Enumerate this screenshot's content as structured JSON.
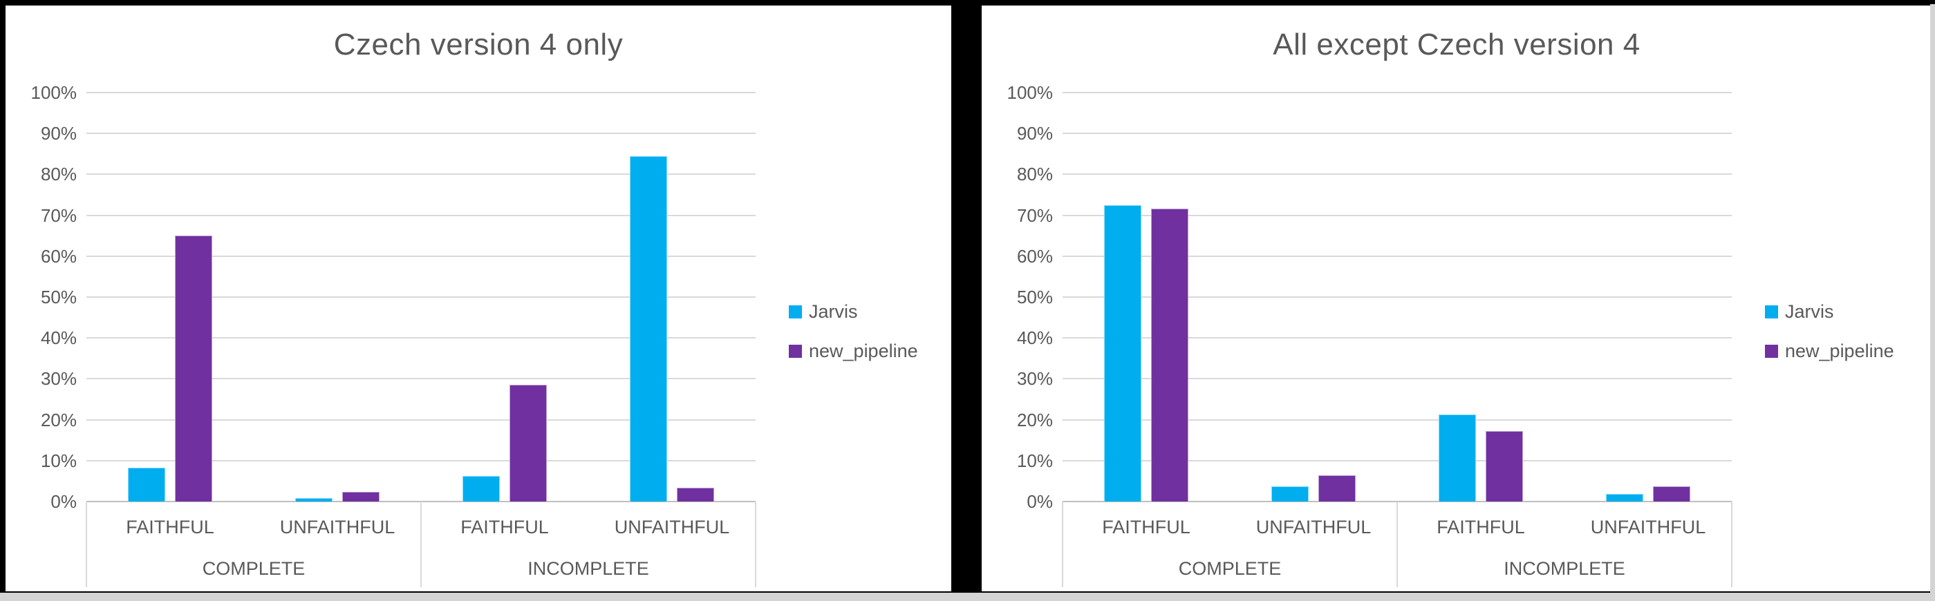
{
  "page": {
    "background_color": "#000000",
    "panel_color": "#ffffff",
    "bottom_strip_color": "#d4d4d4",
    "text_color": "#595959",
    "gridline_color": "#d9d9d9",
    "axis_color": "#bfbfbf"
  },
  "chart_data": [
    {
      "type": "bar",
      "title": "Czech version 4 only",
      "group_labels": [
        "COMPLETE",
        "INCOMPLETE"
      ],
      "categories": [
        "FAITHFUL",
        "UNFAITHFUL",
        "FAITHFUL",
        "UNFAITHFUL"
      ],
      "series": [
        {
          "name": "Jarvis",
          "color": "#00AEEF",
          "values": [
            8.3,
            0.8,
            6.2,
            84.5
          ]
        },
        {
          "name": "new_pipeline",
          "color": "#7030A0",
          "values": [
            65.0,
            2.4,
            28.5,
            3.4
          ]
        }
      ],
      "xlabel": "",
      "ylabel": "",
      "ylim": [
        0,
        100
      ],
      "ytick_step": 10,
      "yticks": [
        "100%",
        "90%",
        "80%",
        "70%",
        "60%",
        "50%",
        "40%",
        "30%",
        "20%",
        "10%",
        "0%"
      ],
      "grid": true,
      "legend_position": "right"
    },
    {
      "type": "bar",
      "title": "All except Czech version 4",
      "group_labels": [
        "COMPLETE",
        "INCOMPLETE"
      ],
      "categories": [
        "FAITHFUL",
        "UNFAITHFUL",
        "FAITHFUL",
        "UNFAITHFUL"
      ],
      "series": [
        {
          "name": "Jarvis",
          "color": "#00AEEF",
          "values": [
            72.4,
            3.8,
            21.3,
            1.9
          ]
        },
        {
          "name": "new_pipeline",
          "color": "#7030A0",
          "values": [
            71.7,
            6.4,
            17.3,
            3.7
          ]
        }
      ],
      "xlabel": "",
      "ylabel": "",
      "ylim": [
        0,
        100
      ],
      "ytick_step": 10,
      "yticks": [
        "100%",
        "90%",
        "80%",
        "70%",
        "60%",
        "50%",
        "40%",
        "30%",
        "20%",
        "10%",
        "0%"
      ],
      "grid": true,
      "legend_position": "right"
    }
  ]
}
